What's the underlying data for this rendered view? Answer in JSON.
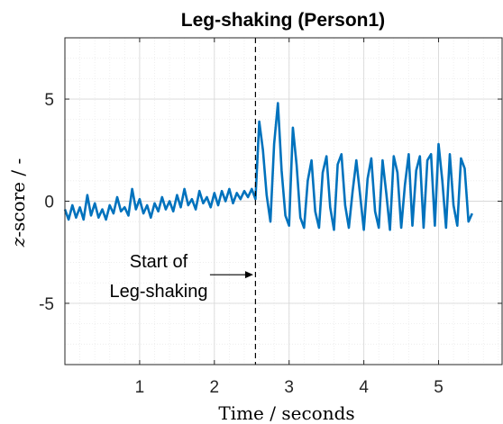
{
  "chart_data": {
    "type": "line",
    "title": "Leg-shaking (Person1)",
    "xlabel_italic": "",
    "xlabel": "Time / seconds",
    "ylabel_italic": "z",
    "ylabel": "-score / -",
    "xlim": [
      0,
      5.85
    ],
    "ylim": [
      -8,
      8
    ],
    "xticks": [
      1,
      2,
      3,
      4,
      5
    ],
    "yticks": [
      5,
      0,
      -5
    ],
    "grid": true,
    "minor_grid": true,
    "line_color": "#0072BD",
    "marker_line": {
      "x": 2.55,
      "style": "dashed",
      "color": "#000000"
    },
    "annotation": {
      "lines": [
        "Start of",
        "Leg-shaking"
      ],
      "arrow_to_x": 2.52,
      "arrow_y": -3.6
    },
    "series": [
      {
        "x": [
          0.0,
          0.05,
          0.1,
          0.15,
          0.2,
          0.25,
          0.3,
          0.35,
          0.4,
          0.45,
          0.5,
          0.55,
          0.6,
          0.65,
          0.7,
          0.75,
          0.8,
          0.85,
          0.9,
          0.95,
          1.0,
          1.05,
          1.1,
          1.15,
          1.2,
          1.25,
          1.3,
          1.35,
          1.4,
          1.45,
          1.5,
          1.55,
          1.6,
          1.65,
          1.7,
          1.75,
          1.8,
          1.85,
          1.9,
          1.95,
          2.0,
          2.05,
          2.1,
          2.15,
          2.2,
          2.25,
          2.3,
          2.35,
          2.4,
          2.45,
          2.5,
          2.55,
          2.6,
          2.65,
          2.7,
          2.75,
          2.8,
          2.85,
          2.9,
          2.95,
          3.0,
          3.05,
          3.1,
          3.15,
          3.2,
          3.25,
          3.3,
          3.35,
          3.4,
          3.45,
          3.5,
          3.55,
          3.6,
          3.65,
          3.7,
          3.75,
          3.8,
          3.85,
          3.9,
          3.95,
          4.0,
          4.05,
          4.1,
          4.15,
          4.2,
          4.25,
          4.3,
          4.35,
          4.4,
          4.45,
          4.5,
          4.55,
          4.6,
          4.65,
          4.7,
          4.75,
          4.8,
          4.85,
          4.9,
          4.95,
          5.0,
          5.05,
          5.1,
          5.15,
          5.2,
          5.25,
          5.3,
          5.35,
          5.4,
          5.45
        ],
        "y": [
          -0.4,
          -0.9,
          -0.2,
          -0.8,
          -0.3,
          -0.9,
          0.3,
          -0.7,
          -0.1,
          -0.8,
          -0.4,
          -0.9,
          -0.2,
          -0.6,
          0.2,
          -0.5,
          -0.3,
          -0.7,
          0.6,
          -0.4,
          0.1,
          -0.6,
          -0.2,
          -0.8,
          -0.1,
          -0.5,
          0.2,
          -0.4,
          0.0,
          -0.5,
          0.3,
          -0.3,
          0.6,
          -0.2,
          0.1,
          -0.4,
          0.5,
          -0.1,
          0.2,
          -0.3,
          0.4,
          -0.2,
          0.5,
          0.0,
          0.6,
          -0.1,
          0.4,
          0.1,
          0.5,
          0.2,
          0.6,
          0.1,
          3.9,
          2.5,
          0.3,
          -1.0,
          2.8,
          4.8,
          1.5,
          -0.7,
          -1.2,
          3.6,
          1.8,
          -0.8,
          -1.3,
          1.0,
          2.0,
          -0.5,
          -1.3,
          1.4,
          2.2,
          -0.3,
          -1.4,
          1.8,
          2.3,
          -0.2,
          -1.3,
          0.5,
          2.0,
          0.3,
          -1.4,
          1.1,
          2.1,
          -0.5,
          -1.3,
          2.0,
          0.4,
          -1.4,
          2.2,
          1.4,
          -1.3,
          0.8,
          2.3,
          -1.2,
          1.5,
          2.2,
          -1.3,
          2.0,
          2.3,
          -1.2,
          2.8,
          1.0,
          -1.3,
          2.3,
          -0.2,
          -1.2,
          2.1,
          1.6,
          -1.0,
          -0.6
        ]
      }
    ]
  }
}
